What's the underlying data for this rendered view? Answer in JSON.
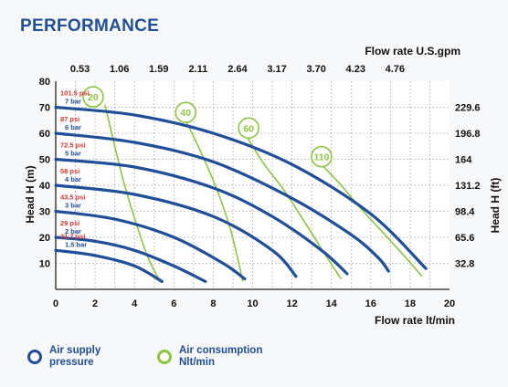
{
  "title": "PERFORMANCE",
  "chart_data": {
    "type": "line",
    "top_axis_label": "Flow rate U.S.gpm",
    "top_ticks": [
      "0.53",
      "1.06",
      "1.59",
      "2.11",
      "2.64",
      "3.17",
      "3.70",
      "4.23",
      "4.76"
    ],
    "xlabel": "Flow rate  lt/min",
    "xlim": [
      0,
      20
    ],
    "x_ticks": [
      0,
      2,
      4,
      6,
      8,
      10,
      12,
      14,
      16,
      18,
      20
    ],
    "ylabel": "Head H (m)",
    "ylim": [
      0,
      80
    ],
    "y_ticks": [
      10,
      20,
      30,
      40,
      50,
      60,
      70,
      80
    ],
    "right_axis_label": "Head H (ft)",
    "right_ticks": [
      {
        "m": 10,
        "label": "32.8"
      },
      {
        "m": 20,
        "label": "65.6"
      },
      {
        "m": 30,
        "label": "98.4"
      },
      {
        "m": 40,
        "label": "131.2"
      },
      {
        "m": 50,
        "label": "164"
      },
      {
        "m": 60,
        "label": "196.8"
      },
      {
        "m": 70,
        "label": "229.6"
      }
    ],
    "grid": true,
    "pressure_curves": [
      {
        "psi": "101.5 psi",
        "bar": "7 bar",
        "points": [
          [
            0,
            70
          ],
          [
            4,
            67
          ],
          [
            8,
            60
          ],
          [
            12,
            48
          ],
          [
            16,
            29
          ],
          [
            18.8,
            8
          ]
        ]
      },
      {
        "psi": "87 psi",
        "bar": "6 bar",
        "points": [
          [
            0,
            60
          ],
          [
            4,
            56.5
          ],
          [
            8,
            49
          ],
          [
            12,
            35
          ],
          [
            15,
            21
          ],
          [
            16.4,
            12
          ],
          [
            16.9,
            7
          ]
        ]
      },
      {
        "psi": "72.5 psi",
        "bar": "5 bar",
        "points": [
          [
            0,
            50
          ],
          [
            4,
            47
          ],
          [
            8,
            39
          ],
          [
            11,
            28
          ],
          [
            13.5,
            15
          ],
          [
            14.8,
            6
          ]
        ]
      },
      {
        "psi": "58 psi",
        "bar": "4 bar",
        "points": [
          [
            0,
            40
          ],
          [
            4,
            36.5
          ],
          [
            8,
            28
          ],
          [
            11,
            15
          ],
          [
            12.2,
            5
          ]
        ]
      },
      {
        "psi": "43.5 psi",
        "bar": "3 bar",
        "points": [
          [
            0,
            30
          ],
          [
            3,
            27
          ],
          [
            6,
            20
          ],
          [
            8.5,
            10
          ],
          [
            9.6,
            4
          ]
        ]
      },
      {
        "psi": "29 psi",
        "bar": "2 bar",
        "points": [
          [
            0,
            20
          ],
          [
            2,
            18.5
          ],
          [
            4,
            15
          ],
          [
            6,
            9
          ],
          [
            7.6,
            3
          ]
        ]
      },
      {
        "psi": "21.7 psi",
        "bar": "1.5 bar",
        "points": [
          [
            0,
            15
          ],
          [
            2,
            13
          ],
          [
            4,
            9
          ],
          [
            5.4,
            3
          ]
        ]
      }
    ],
    "air_curves": [
      {
        "label": "20",
        "label_at": [
          1.9,
          74
        ],
        "points": [
          [
            2.5,
            71
          ],
          [
            3.0,
            55
          ],
          [
            3.5,
            40
          ],
          [
            4.1,
            25
          ],
          [
            4.7,
            12
          ],
          [
            5.3,
            3
          ]
        ]
      },
      {
        "label": "40",
        "label_at": [
          6.6,
          68
        ],
        "points": [
          [
            6.6,
            65
          ],
          [
            7.3,
            54
          ],
          [
            8.1,
            40
          ],
          [
            8.8,
            25
          ],
          [
            9.3,
            10
          ],
          [
            9.5,
            3
          ]
        ]
      },
      {
        "label": "60",
        "label_at": [
          9.8,
          62
        ],
        "points": [
          [
            9.6,
            60
          ],
          [
            10.5,
            49
          ],
          [
            11.6,
            38
          ],
          [
            12.8,
            24
          ],
          [
            13.8,
            12
          ],
          [
            14.5,
            4
          ]
        ]
      },
      {
        "label": "110",
        "label_at": [
          13.5,
          51
        ],
        "points": [
          [
            13.5,
            48
          ],
          [
            14.5,
            40
          ],
          [
            15.5,
            31
          ],
          [
            16.6,
            22
          ],
          [
            17.8,
            12
          ],
          [
            18.6,
            5
          ]
        ]
      }
    ],
    "colors": {
      "pressure": "#1f4e9a",
      "air": "#8cc63f",
      "psi_text": "#e0332d",
      "bar_text": "#1f4e9a"
    }
  },
  "legend": [
    {
      "label_line1": "Air supply",
      "label_line2": "pressure",
      "color": "#1f4e9a"
    },
    {
      "label_line1": "Air consumption",
      "label_line2": "Nlt/min",
      "color": "#8cc63f"
    }
  ]
}
